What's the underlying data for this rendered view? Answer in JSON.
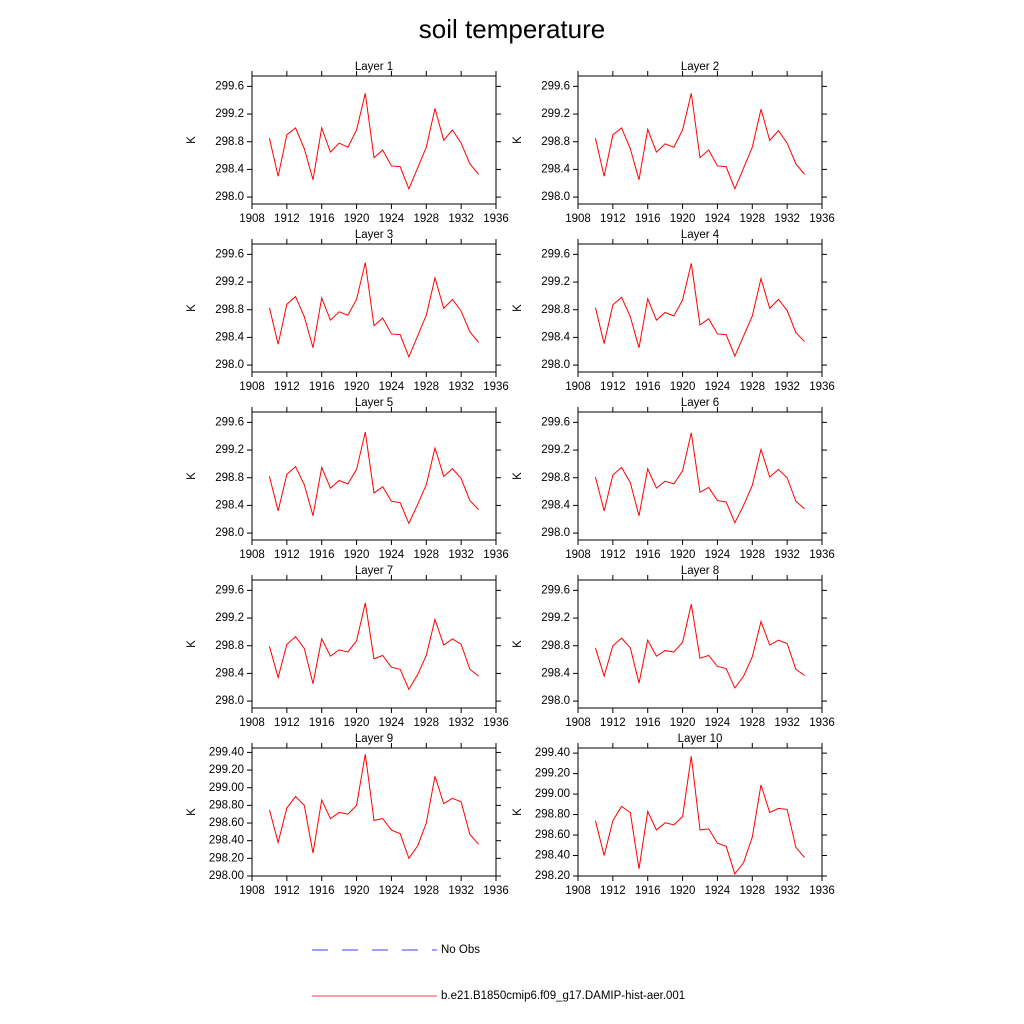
{
  "title": "soil temperature",
  "legend": [
    {
      "name": "No Obs",
      "color": "#0000ff",
      "dashed": true
    },
    {
      "name": "b.e21.B1850cmip6.f09_g17.DAMIP-hist-aer.001",
      "color": "#ff0000",
      "dashed": false
    }
  ],
  "chart_data": [
    {
      "type": "line",
      "title": "Layer 1",
      "ylabel": "K",
      "color": "#ff0000",
      "x": [
        1910,
        1911,
        1912,
        1913,
        1914,
        1915,
        1916,
        1917,
        1918,
        1919,
        1920,
        1921,
        1922,
        1923,
        1924,
        1925,
        1926,
        1927,
        1928,
        1929,
        1930,
        1931,
        1932,
        1933,
        1934
      ],
      "values": [
        298.85,
        298.3,
        298.9,
        299.0,
        298.7,
        298.25,
        299.0,
        298.65,
        298.78,
        298.72,
        298.97,
        299.5,
        298.57,
        298.68,
        298.45,
        298.44,
        298.12,
        298.42,
        298.72,
        299.28,
        298.82,
        298.97,
        298.78,
        298.48,
        298.33
      ],
      "xlim": [
        1908,
        1936
      ],
      "xticks": [
        1908,
        1912,
        1916,
        1920,
        1924,
        1928,
        1932,
        1936
      ],
      "ylim": [
        297.9,
        299.75
      ],
      "yticks": [
        {
          "value": 298,
          "label": "298.0"
        },
        298.4,
        298.8,
        299.2,
        299.6
      ]
    },
    {
      "type": "line",
      "title": "Layer 2",
      "ylabel": "K",
      "color": "#ff0000",
      "x": [
        1910,
        1911,
        1912,
        1913,
        1914,
        1915,
        1916,
        1917,
        1918,
        1919,
        1920,
        1921,
        1922,
        1923,
        1924,
        1925,
        1926,
        1927,
        1928,
        1929,
        1930,
        1931,
        1932,
        1933,
        1934
      ],
      "values": [
        298.85,
        298.3,
        298.9,
        299.0,
        298.7,
        298.25,
        298.98,
        298.65,
        298.77,
        298.72,
        298.97,
        299.5,
        298.57,
        298.68,
        298.45,
        298.44,
        298.12,
        298.42,
        298.72,
        299.27,
        298.82,
        298.96,
        298.78,
        298.48,
        298.33
      ],
      "xlim": [
        1908,
        1936
      ],
      "xticks": [
        1908,
        1912,
        1916,
        1920,
        1924,
        1928,
        1932,
        1936
      ],
      "ylim": [
        297.9,
        299.75
      ],
      "yticks": [
        {
          "value": 298,
          "label": "298.0"
        },
        298.4,
        298.8,
        299.2,
        299.6
      ]
    },
    {
      "type": "line",
      "title": "Layer 3",
      "ylabel": "K",
      "color": "#ff0000",
      "x": [
        1910,
        1911,
        1912,
        1913,
        1914,
        1915,
        1916,
        1917,
        1918,
        1919,
        1920,
        1921,
        1922,
        1923,
        1924,
        1925,
        1926,
        1927,
        1928,
        1929,
        1930,
        1931,
        1932,
        1933,
        1934
      ],
      "values": [
        298.83,
        298.3,
        298.88,
        298.99,
        298.7,
        298.25,
        298.97,
        298.65,
        298.77,
        298.72,
        298.95,
        299.48,
        298.57,
        298.68,
        298.45,
        298.44,
        298.12,
        298.42,
        298.72,
        299.26,
        298.82,
        298.95,
        298.78,
        298.48,
        298.33
      ],
      "xlim": [
        1908,
        1936
      ],
      "xticks": [
        1908,
        1912,
        1916,
        1920,
        1924,
        1928,
        1932,
        1936
      ],
      "ylim": [
        297.9,
        299.75
      ],
      "yticks": [
        {
          "value": 298,
          "label": "298.0"
        },
        298.4,
        298.8,
        299.2,
        299.6
      ]
    },
    {
      "type": "line",
      "title": "Layer 4",
      "ylabel": "K",
      "color": "#ff0000",
      "x": [
        1910,
        1911,
        1912,
        1913,
        1914,
        1915,
        1916,
        1917,
        1918,
        1919,
        1920,
        1921,
        1922,
        1923,
        1924,
        1925,
        1926,
        1927,
        1928,
        1929,
        1930,
        1931,
        1932,
        1933,
        1934
      ],
      "values": [
        298.83,
        298.31,
        298.87,
        298.98,
        298.7,
        298.25,
        298.96,
        298.65,
        298.76,
        298.71,
        298.94,
        299.47,
        298.58,
        298.67,
        298.45,
        298.44,
        298.13,
        298.42,
        298.71,
        299.25,
        298.82,
        298.95,
        298.79,
        298.47,
        298.34
      ],
      "xlim": [
        1908,
        1936
      ],
      "xticks": [
        1908,
        1912,
        1916,
        1920,
        1924,
        1928,
        1932,
        1936
      ],
      "ylim": [
        297.9,
        299.75
      ],
      "yticks": [
        {
          "value": 298,
          "label": "298.0"
        },
        298.4,
        298.8,
        299.2,
        299.6
      ]
    },
    {
      "type": "line",
      "title": "Layer 5",
      "ylabel": "K",
      "color": "#ff0000",
      "x": [
        1910,
        1911,
        1912,
        1913,
        1914,
        1915,
        1916,
        1917,
        1918,
        1919,
        1920,
        1921,
        1922,
        1923,
        1924,
        1925,
        1926,
        1927,
        1928,
        1929,
        1930,
        1931,
        1932,
        1933,
        1934
      ],
      "values": [
        298.82,
        298.32,
        298.85,
        298.96,
        298.7,
        298.25,
        298.95,
        298.65,
        298.76,
        298.71,
        298.92,
        299.46,
        298.58,
        298.67,
        298.46,
        298.44,
        298.14,
        298.41,
        298.7,
        299.23,
        298.82,
        298.93,
        298.79,
        298.47,
        298.34
      ],
      "xlim": [
        1908,
        1936
      ],
      "xticks": [
        1908,
        1912,
        1916,
        1920,
        1924,
        1928,
        1932,
        1936
      ],
      "ylim": [
        297.9,
        299.75
      ],
      "yticks": [
        {
          "value": 298,
          "label": "298.0"
        },
        298.4,
        298.8,
        299.2,
        299.6
      ]
    },
    {
      "type": "line",
      "title": "Layer 6",
      "ylabel": "K",
      "color": "#ff0000",
      "x": [
        1910,
        1911,
        1912,
        1913,
        1914,
        1915,
        1916,
        1917,
        1918,
        1919,
        1920,
        1921,
        1922,
        1923,
        1924,
        1925,
        1926,
        1927,
        1928,
        1929,
        1930,
        1931,
        1932,
        1933,
        1934
      ],
      "values": [
        298.81,
        298.32,
        298.84,
        298.95,
        298.73,
        298.25,
        298.93,
        298.65,
        298.75,
        298.71,
        298.9,
        299.45,
        298.59,
        298.66,
        298.47,
        298.45,
        298.15,
        298.4,
        298.69,
        299.21,
        298.81,
        298.92,
        298.8,
        298.46,
        298.35
      ],
      "xlim": [
        1908,
        1936
      ],
      "xticks": [
        1908,
        1912,
        1916,
        1920,
        1924,
        1928,
        1932,
        1936
      ],
      "ylim": [
        297.9,
        299.75
      ],
      "yticks": [
        {
          "value": 298,
          "label": "298.0"
        },
        298.4,
        298.8,
        299.2,
        299.6
      ]
    },
    {
      "type": "line",
      "title": "Layer 7",
      "ylabel": "K",
      "color": "#ff0000",
      "x": [
        1910,
        1911,
        1912,
        1913,
        1914,
        1915,
        1916,
        1917,
        1918,
        1919,
        1920,
        1921,
        1922,
        1923,
        1924,
        1925,
        1926,
        1927,
        1928,
        1929,
        1930,
        1931,
        1932,
        1933,
        1934
      ],
      "values": [
        298.79,
        298.34,
        298.82,
        298.93,
        298.76,
        298.25,
        298.9,
        298.65,
        298.74,
        298.71,
        298.87,
        299.42,
        298.61,
        298.66,
        298.49,
        298.46,
        298.17,
        298.38,
        298.66,
        299.18,
        298.81,
        298.9,
        298.82,
        298.46,
        298.36
      ],
      "xlim": [
        1908,
        1936
      ],
      "xticks": [
        1908,
        1912,
        1916,
        1920,
        1924,
        1928,
        1932,
        1936
      ],
      "ylim": [
        297.9,
        299.75
      ],
      "yticks": [
        {
          "value": 298,
          "label": "298.0"
        },
        298.4,
        298.8,
        299.2,
        299.6
      ]
    },
    {
      "type": "line",
      "title": "Layer 8",
      "ylabel": "K",
      "color": "#ff0000",
      "x": [
        1910,
        1911,
        1912,
        1913,
        1914,
        1915,
        1916,
        1917,
        1918,
        1919,
        1920,
        1921,
        1922,
        1923,
        1924,
        1925,
        1926,
        1927,
        1928,
        1929,
        1930,
        1931,
        1932,
        1933,
        1934
      ],
      "values": [
        298.77,
        298.36,
        298.8,
        298.91,
        298.77,
        298.26,
        298.88,
        298.65,
        298.73,
        298.71,
        298.85,
        299.4,
        298.62,
        298.66,
        298.5,
        298.47,
        298.19,
        298.36,
        298.64,
        299.15,
        298.81,
        298.88,
        298.83,
        298.46,
        298.37
      ],
      "xlim": [
        1908,
        1936
      ],
      "xticks": [
        1908,
        1912,
        1916,
        1920,
        1924,
        1928,
        1932,
        1936
      ],
      "ylim": [
        297.9,
        299.75
      ],
      "yticks": [
        {
          "value": 298,
          "label": "298.0"
        },
        298.4,
        298.8,
        299.2,
        299.6
      ]
    },
    {
      "type": "line",
      "title": "Layer 9",
      "ylabel": "K",
      "color": "#ff0000",
      "x": [
        1910,
        1911,
        1912,
        1913,
        1914,
        1915,
        1916,
        1917,
        1918,
        1919,
        1920,
        1921,
        1922,
        1923,
        1924,
        1925,
        1926,
        1927,
        1928,
        1929,
        1930,
        1931,
        1932,
        1933,
        1934
      ],
      "values": [
        298.75,
        298.38,
        298.77,
        298.9,
        298.8,
        298.26,
        298.86,
        298.65,
        298.72,
        298.7,
        298.8,
        299.38,
        298.63,
        298.65,
        298.52,
        298.48,
        298.2,
        298.34,
        298.6,
        299.13,
        298.82,
        298.88,
        298.84,
        298.47,
        298.36
      ],
      "xlim": [
        1908,
        1936
      ],
      "xticks": [
        1908,
        1912,
        1916,
        1920,
        1924,
        1928,
        1932,
        1936
      ],
      "ylim": [
        298.0,
        299.45
      ],
      "yticks": [
        {
          "value": 298,
          "label": "298.00"
        },
        {
          "value": 298.2,
          "label": "298.20"
        },
        {
          "value": 298.4,
          "label": "298.40"
        },
        {
          "value": 298.6,
          "label": "298.60"
        },
        {
          "value": 298.8,
          "label": "298.80"
        },
        {
          "value": 299,
          "label": "299.00"
        },
        {
          "value": 299.2,
          "label": "299.20"
        },
        {
          "value": 299.4,
          "label": "299.40"
        }
      ]
    },
    {
      "type": "line",
      "title": "Layer 10",
      "ylabel": "K",
      "color": "#ff0000",
      "x": [
        1910,
        1911,
        1912,
        1913,
        1914,
        1915,
        1916,
        1917,
        1918,
        1919,
        1920,
        1921,
        1922,
        1923,
        1924,
        1925,
        1926,
        1927,
        1928,
        1929,
        1930,
        1931,
        1932,
        1933,
        1934
      ],
      "values": [
        298.74,
        298.4,
        298.74,
        298.88,
        298.82,
        298.27,
        298.83,
        298.65,
        298.72,
        298.7,
        298.78,
        299.37,
        298.65,
        298.66,
        298.52,
        298.49,
        298.22,
        298.33,
        298.58,
        299.09,
        298.82,
        298.86,
        298.85,
        298.48,
        298.38
      ],
      "xlim": [
        1908,
        1936
      ],
      "xticks": [
        1908,
        1912,
        1916,
        1920,
        1924,
        1928,
        1932,
        1936
      ],
      "ylim": [
        298.2,
        299.45
      ],
      "yticks": [
        {
          "value": 298.2,
          "label": "298.20"
        },
        {
          "value": 298.4,
          "label": "298.40"
        },
        {
          "value": 298.6,
          "label": "298.60"
        },
        {
          "value": 298.8,
          "label": "298.80"
        },
        {
          "value": 299,
          "label": "299.00"
        },
        {
          "value": 299.2,
          "label": "299.20"
        },
        {
          "value": 299.4,
          "label": "299.40"
        }
      ]
    }
  ]
}
